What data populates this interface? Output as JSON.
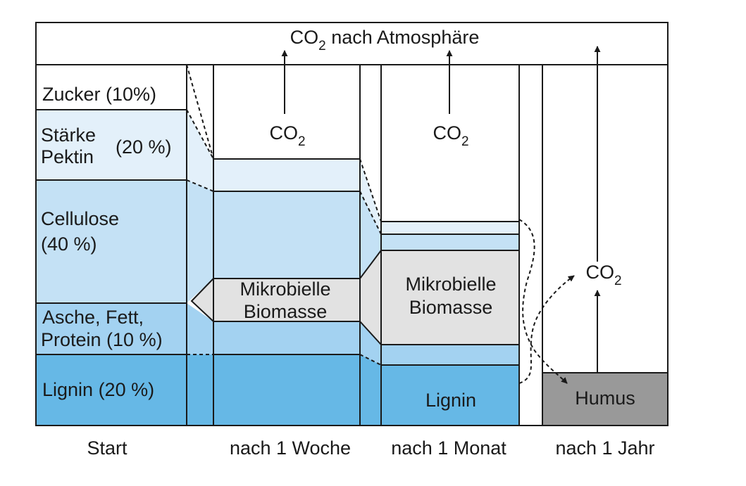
{
  "top_band": {
    "prefix": "CO",
    "sub": "2",
    "suffix": " nach Atmosphäre"
  },
  "start": {
    "zucker": "Zucker (10%)",
    "staerke": "Stärke",
    "pektin": "Pektin",
    "staerke_pct": "(20 %)",
    "cellulose": "Cellulose",
    "cellulose_pct": "(40 %)",
    "asche": "Asche, Fett,",
    "protein": "Protein (10 %)",
    "lignin": "Lignin (20 %)"
  },
  "co2": {
    "text": "CO",
    "sub": "2"
  },
  "biomass": {
    "line1": "Mikrobielle",
    "line2": "Biomasse"
  },
  "month": {
    "lignin": "Lignin"
  },
  "year": {
    "humus": "Humus"
  },
  "timeline": [
    "Start",
    "nach 1 Woche",
    "nach 1 Monat",
    "nach 1 Jahr"
  ],
  "colors": {
    "zucker": "#ffffff",
    "staerke": "#e3f0fa",
    "cellulose": "#c4e1f5",
    "asche": "#a3d2f1",
    "lignin": "#66b8e6",
    "biomass": "#e2e2e2",
    "humus": "#999999"
  }
}
